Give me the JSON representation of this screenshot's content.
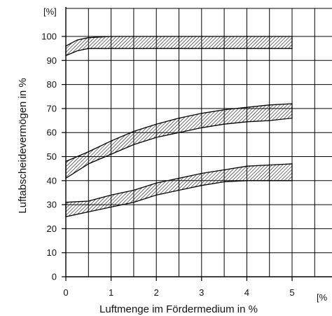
{
  "chart_data": {
    "type": "area",
    "xlabel": "Luftmenge im Fördermedium in %",
    "ylabel": "Luftabscheidevermögen in %",
    "x_unit_label": "[%",
    "y_unit_label": "[%]",
    "xlim": [
      0,
      5.5
    ],
    "ylim": [
      0,
      105
    ],
    "x_ticks": [
      0,
      1,
      2,
      3,
      4,
      5
    ],
    "y_ticks": [
      0,
      10,
      20,
      30,
      40,
      50,
      60,
      70,
      80,
      90,
      100
    ],
    "grid": true,
    "series": [
      {
        "x": [
          0,
          0.25,
          0.5,
          1,
          1.5,
          2,
          2.5,
          3,
          3.5,
          4,
          4.5,
          5
        ],
        "lower": [
          92,
          94,
          95,
          95,
          95,
          95,
          95,
          95,
          95,
          95,
          95,
          95
        ],
        "upper": [
          96,
          98.5,
          99.5,
          100,
          100,
          100,
          100,
          100,
          100,
          100,
          100,
          100
        ]
      },
      {
        "x": [
          0,
          0.5,
          1,
          1.5,
          2,
          2.5,
          3,
          3.5,
          4,
          4.5,
          5
        ],
        "lower": [
          41,
          47,
          51,
          55,
          58,
          60,
          62,
          63.5,
          64.5,
          65,
          66
        ],
        "upper": [
          48,
          52,
          56.5,
          60.5,
          63.5,
          66,
          68,
          69.5,
          70.5,
          71.5,
          72
        ]
      },
      {
        "x": [
          0,
          0.5,
          1,
          1.5,
          2,
          2.5,
          3,
          3.5,
          4,
          4.5,
          5
        ],
        "lower": [
          25,
          27,
          29,
          31,
          34,
          36,
          38,
          39.5,
          40,
          40,
          40
        ],
        "upper": [
          31,
          31.5,
          34,
          36,
          39,
          41,
          43,
          44.5,
          46,
          46.5,
          47
        ]
      }
    ]
  }
}
